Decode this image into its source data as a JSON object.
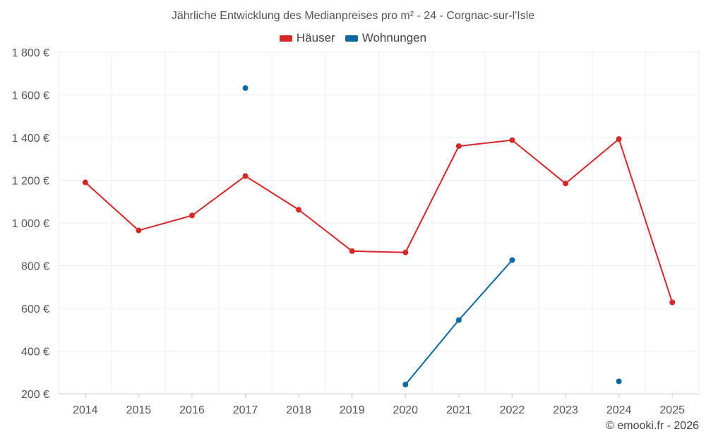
{
  "chart_data": {
    "type": "line",
    "title": "Jährliche Entwicklung des Medianpreises pro m² - 24 - Corgnac-sur-l'Isle",
    "categories": [
      "2014",
      "2015",
      "2016",
      "2017",
      "2018",
      "2019",
      "2020",
      "2021",
      "2022",
      "2023",
      "2024",
      "2025"
    ],
    "series": [
      {
        "name": "Häuser",
        "color": "#d62728",
        "values": [
          1190,
          965,
          1035,
          1220,
          1062,
          868,
          862,
          1360,
          1388,
          1185,
          1393,
          628
        ]
      },
      {
        "name": "Wohnungen",
        "color": "#0868a0",
        "values": [
          null,
          null,
          null,
          1632,
          null,
          null,
          243,
          545,
          826,
          null,
          258,
          null
        ]
      }
    ],
    "ylim": [
      200,
      1800
    ],
    "yticks": [
      200,
      400,
      600,
      800,
      1000,
      1200,
      1400,
      1600,
      1800
    ],
    "ytick_labels": [
      "200 €",
      "400 €",
      "600 €",
      "800 €",
      "1 000 €",
      "1 200 €",
      "1 400 €",
      "1 600 €",
      "1 800 €"
    ],
    "xlabel": "",
    "ylabel": "",
    "grid": true,
    "legend_position": "top-center"
  },
  "credit": "© emooki.fr - 2026"
}
